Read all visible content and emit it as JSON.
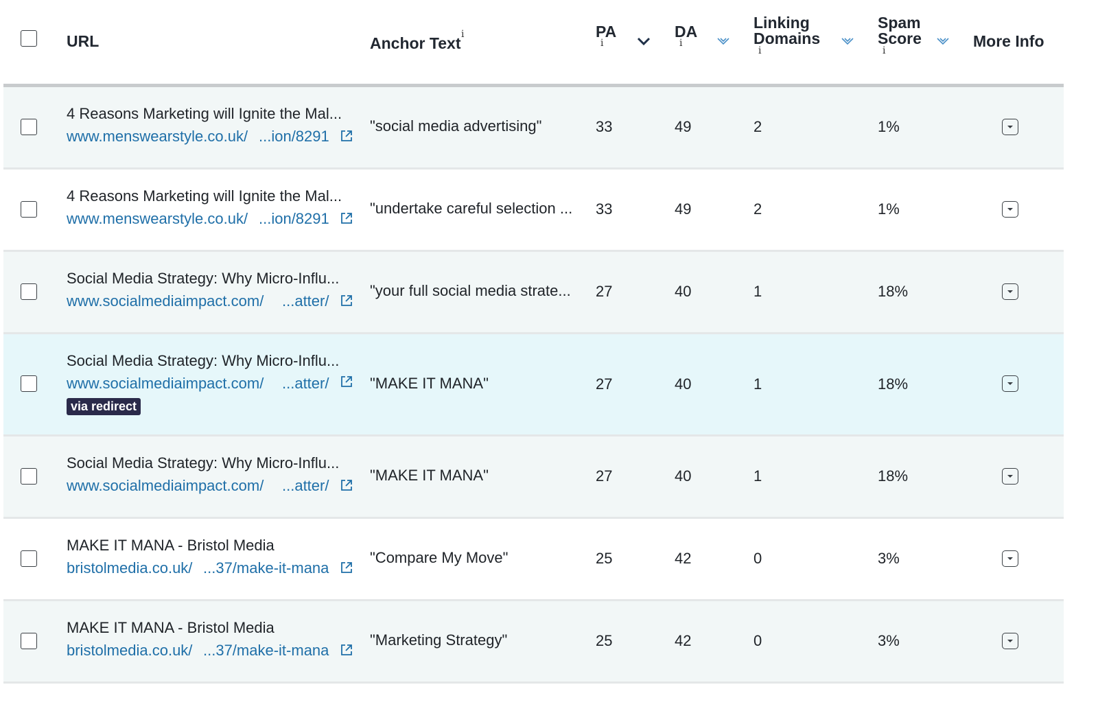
{
  "header": {
    "url": "URL",
    "anchor_text": "Anchor Text",
    "pa": "PA",
    "da": "DA",
    "linking_domains_l1": "Linking",
    "linking_domains_l2": "Domains",
    "spam_score_l1": "Spam",
    "spam_score_l2": "Score",
    "more_info": "More Info",
    "info_glyph": "i"
  },
  "rows": [
    {
      "title": "4 Reasons Marketing will Ignite the Mal...",
      "link_start": "www.menswearstyle.co.uk/",
      "link_end": "...ion/8291",
      "anchor": "\"social media advertising\"",
      "pa": "33",
      "da": "49",
      "ld": "2",
      "spam": "1%"
    },
    {
      "title": "4 Reasons Marketing will Ignite the Mal...",
      "link_start": "www.menswearstyle.co.uk/",
      "link_end": "...ion/8291",
      "anchor": "\"undertake careful selection ...",
      "pa": "33",
      "da": "49",
      "ld": "2",
      "spam": "1%"
    },
    {
      "title": "Social Media Strategy: Why Micro-Influ...",
      "link_start": "www.socialmediaimpact.com/",
      "link_end": "...atter/",
      "anchor": "\"your full social media strate...",
      "pa": "27",
      "da": "40",
      "ld": "1",
      "spam": "18%"
    },
    {
      "title": "Social Media Strategy: Why Micro-Influ...",
      "link_start": "www.socialmediaimpact.com/",
      "link_end": "...atter/",
      "anchor": "\"MAKE IT MANA\"",
      "pa": "27",
      "da": "40",
      "ld": "1",
      "spam": "18%",
      "badge": "via redirect"
    },
    {
      "title": "Social Media Strategy: Why Micro-Influ...",
      "link_start": "www.socialmediaimpact.com/",
      "link_end": "...atter/",
      "anchor": "\"MAKE IT MANA\"",
      "pa": "27",
      "da": "40",
      "ld": "1",
      "spam": "18%"
    },
    {
      "title": "MAKE IT MANA - Bristol Media",
      "link_start": "bristolmedia.co.uk/",
      "link_end": "...37/make-it-mana",
      "anchor": "\"Compare My Move\"",
      "pa": "25",
      "da": "42",
      "ld": "0",
      "spam": "3%"
    },
    {
      "title": "MAKE IT MANA - Bristol Media",
      "link_start": "bristolmedia.co.uk/",
      "link_end": "...37/make-it-mana",
      "anchor": "\"Marketing Strategy\"",
      "pa": "25",
      "da": "42",
      "ld": "0",
      "spam": "3%"
    }
  ],
  "colors": {
    "link": "#1f6fa8",
    "alt_row": "#f2f7f7",
    "highlight_row": "#e6f7fa",
    "badge_bg": "#2a2a4a",
    "sort_inactive": "#4a90c8",
    "sort_active": "#1f3048"
  },
  "icons": {
    "external_link": "external-link-icon",
    "sort": "chevron-down-icon",
    "more_info": "dropdown-icon"
  }
}
